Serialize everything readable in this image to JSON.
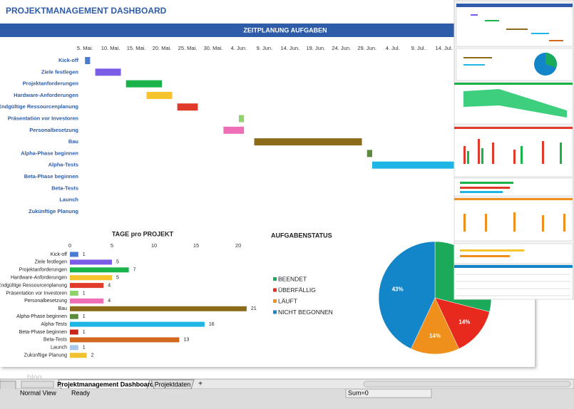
{
  "header": {
    "title": "PROJEKTMANAGEMENT DASHBOARD"
  },
  "chart_data": [
    {
      "type": "gantt",
      "title": "ZEITPLANUNG AUFGABEN",
      "categories": [
        "Kick-off",
        "Ziele festlegen",
        "Projektanforderungen",
        "Hardware-Anforderungen",
        "Endgültige Ressourcenplanung",
        "Präsentation vor Investoren",
        "Personalbesetzung",
        "Bau",
        "Alpha-Phase beginnen",
        "Alpha-Tests",
        "Beta-Phase beginnen",
        "Beta-Tests",
        "Launch",
        "Zukünftige Planung"
      ],
      "starts": [
        0,
        2,
        8,
        12,
        18,
        30,
        27,
        33,
        55,
        56,
        null,
        null,
        null,
        null
      ],
      "durations": [
        1,
        5,
        7,
        5,
        4,
        1,
        4,
        21,
        1,
        16,
        null,
        null,
        null,
        null
      ],
      "colors": [
        "#4a7bd0",
        "#7b5ce6",
        "#19b34a",
        "#f5c32c",
        "#e03a2a",
        "#8fd16a",
        "#ee6fb5",
        "#8b6b1a",
        "#5b8a3a",
        "#1fb6e6",
        "#c8241a",
        "#d2691e",
        "#a8c8ec",
        "#f2c12e"
      ],
      "xlim": [
        -1,
        72
      ],
      "xticks": [
        {
          "value": 0,
          "label": "5. Mai."
        },
        {
          "value": 5,
          "label": "10. Mai."
        },
        {
          "value": 10,
          "label": "15. Mai."
        },
        {
          "value": 15,
          "label": "20. Mai."
        },
        {
          "value": 20,
          "label": "25. Mai."
        },
        {
          "value": 25,
          "label": "30. Mai."
        },
        {
          "value": 30,
          "label": "4. Jun."
        },
        {
          "value": 35,
          "label": "9. Jun."
        },
        {
          "value": 40,
          "label": "14. Jun."
        },
        {
          "value": 45,
          "label": "19. Jun."
        },
        {
          "value": 50,
          "label": "24. Jun."
        },
        {
          "value": 55,
          "label": "29. Jun."
        },
        {
          "value": 60,
          "label": "4. Jul."
        },
        {
          "value": 65,
          "label": "9. Jul."
        },
        {
          "value": 70,
          "label": "14. Jul."
        }
      ]
    },
    {
      "type": "bar",
      "title": "TAGE pro PROJEKT",
      "categories": [
        "Kick-off",
        "Ziele festlegen",
        "Projektanforderungen",
        "Hardware-Anforderungen",
        "Endgültige Ressourcenplanung",
        "Präsentation vor Investoren",
        "Personalbesetzung",
        "Bau",
        "Alpha-Phase beginnen",
        "Alpha-Tests",
        "Beta-Phase beginnen",
        "Beta-Tests",
        "Launch",
        "Zukünftige Planung"
      ],
      "values": [
        1,
        5,
        7,
        5,
        4,
        1,
        4,
        21,
        1,
        16,
        1,
        13,
        1,
        2
      ],
      "colors": [
        "#4a7bd0",
        "#7b5ce6",
        "#19b34a",
        "#f5c32c",
        "#e03a2a",
        "#8fd16a",
        "#ee6fb5",
        "#8b6b1a",
        "#5b8a3a",
        "#1fb6e6",
        "#c8241a",
        "#d2691e",
        "#a8c8ec",
        "#f2c12e"
      ],
      "xlim": [
        0,
        23
      ],
      "xticks": [
        0,
        5,
        10,
        15,
        20
      ]
    },
    {
      "type": "pie",
      "title": "AUFGABENSTATUS",
      "categories": [
        "BEENDET",
        "ÜBERFÄLLIG",
        "LÄUFT",
        "NICHT BEGONNEN"
      ],
      "values": [
        29,
        14,
        14,
        43
      ],
      "value_labels": [
        null,
        "14%",
        "14%",
        "43%"
      ],
      "colors": [
        "#1aaa5a",
        "#e8291e",
        "#f0901c",
        "#1286c8"
      ]
    }
  ],
  "sheet_tabs": [
    "Projektmanagement Dashboard",
    "Projektdaten",
    "+"
  ],
  "status_bar": {
    "view": "Normal View",
    "state": "Ready",
    "sum": "Sum=0"
  },
  "watermark": "blog"
}
